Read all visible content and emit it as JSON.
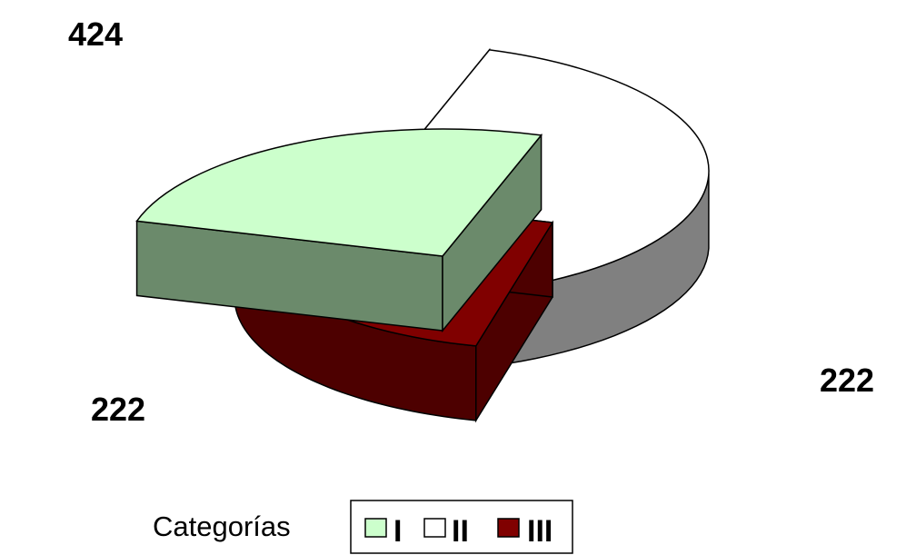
{
  "chart_data": {
    "type": "pie",
    "three_d": true,
    "exploded": true,
    "title": "",
    "categories": [
      "I",
      "II",
      "III"
    ],
    "values": [
      222,
      424,
      222
    ],
    "data_labels": [
      "222",
      "424",
      "222"
    ],
    "colors": {
      "I": {
        "top": "#ccffcc",
        "side": "#6b8a6b"
      },
      "II": {
        "top": "#ffffff",
        "side": "#808080"
      },
      "III": {
        "top": "#800000",
        "side": "#4d0000"
      }
    },
    "legend": {
      "title": "Categorías",
      "position": "bottom",
      "entries": [
        "I",
        "II",
        "III"
      ]
    }
  }
}
